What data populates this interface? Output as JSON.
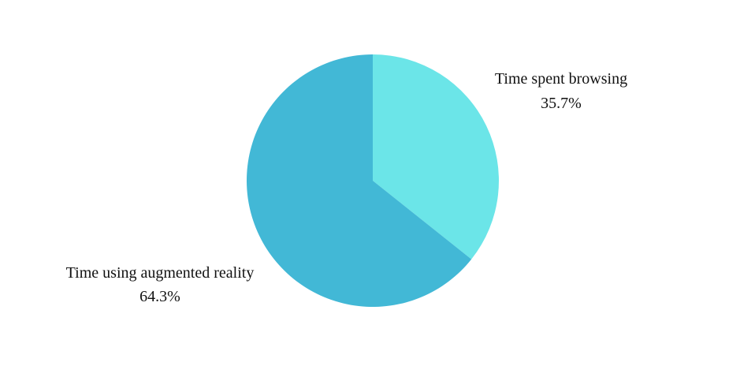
{
  "chart_data": {
    "type": "pie",
    "title": "",
    "slices": [
      {
        "label": "Time spent browsing",
        "value": 35.7,
        "display": "35.7%",
        "color": "#6be5e8"
      },
      {
        "label": "Time using augmented reality",
        "value": 64.3,
        "display": "64.3%",
        "color": "#42b8d6"
      }
    ],
    "start_angle_deg": 0,
    "direction": "clockwise"
  }
}
